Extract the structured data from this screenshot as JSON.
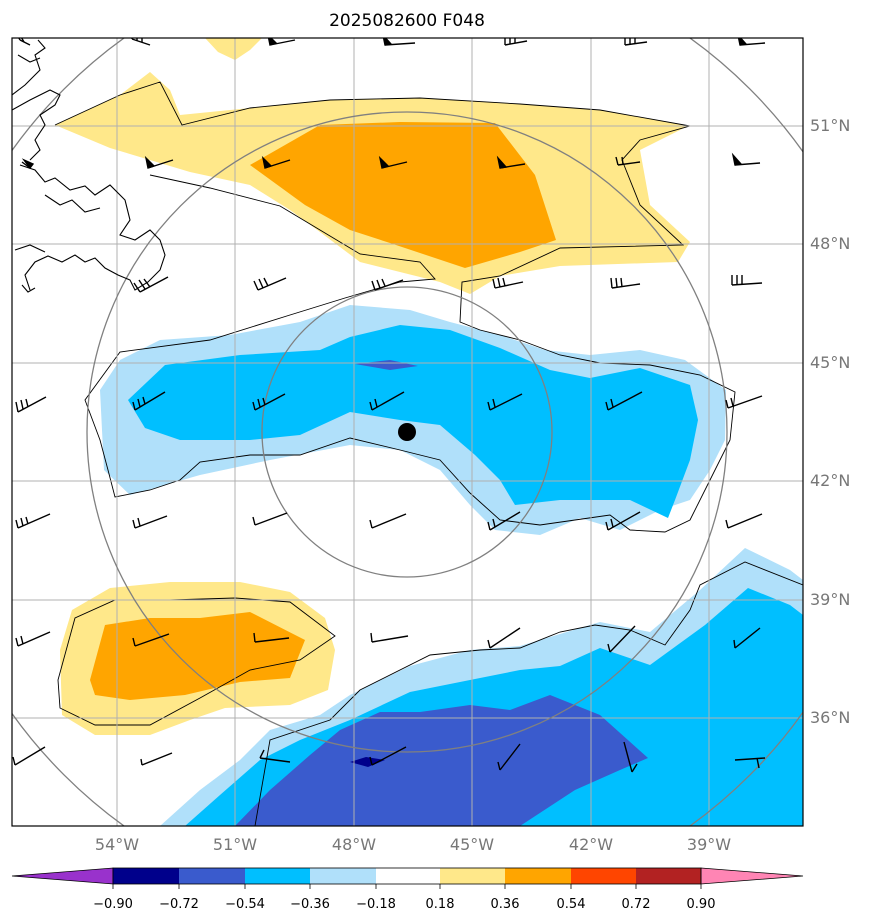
{
  "title": "2025082600 F048",
  "lat_labels": [
    "51°N",
    "48°N",
    "45°N",
    "42°N",
    "39°N",
    "36°N"
  ],
  "lon_labels": [
    "54°W",
    "51°W",
    "48°W",
    "45°W",
    "42°W",
    "39°W"
  ],
  "colorbar": {
    "labels": [
      "−0.90",
      "−0.72",
      "−0.54",
      "−0.36",
      "−0.18",
      "0.18",
      "0.36",
      "0.54",
      "0.72",
      "0.90"
    ],
    "colors": [
      "#9932cc",
      "#00008b",
      "#3a5bcd",
      "#00bfff",
      "#b0e0fa",
      "#ffffff",
      "#ffe88a",
      "#ffa500",
      "#ff4500",
      "#b22222",
      "#ff85b4"
    ]
  },
  "colors": {
    "light_blue": "#b0e0fa",
    "deep_sky_blue": "#00bfff",
    "royal_blue": "#3a5bcd",
    "navy": "#00008b",
    "light_yellow": "#ffe88a",
    "orange": "#ffa500"
  },
  "center_marker": {
    "lat": 43.2,
    "lon": -46.6
  }
}
